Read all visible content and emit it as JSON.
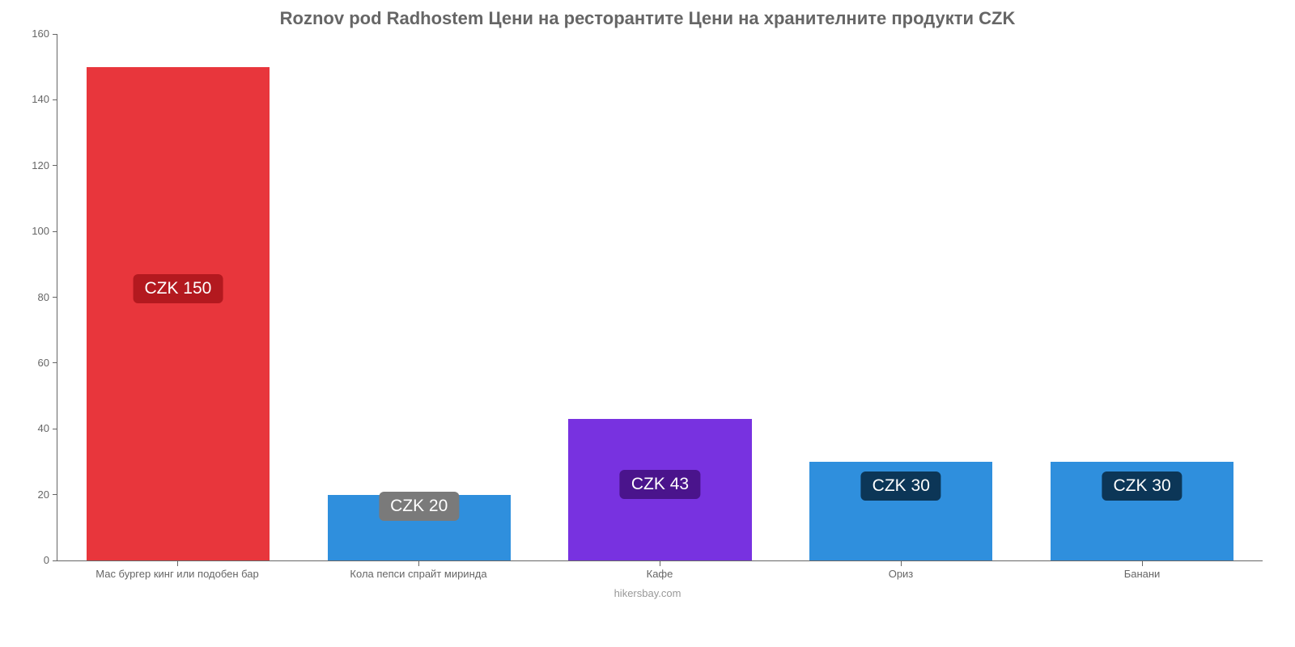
{
  "chart": {
    "type": "bar",
    "title": "Roznov pod Radhostem Цени на ресторантите Цени на хранителните продукти CZK",
    "title_fontsize": 22,
    "title_color": "#666666",
    "attribution": "hikersbay.com",
    "attribution_color": "#999999",
    "background_color": "#ffffff",
    "axis_color": "#666666",
    "ylim": [
      0,
      160
    ],
    "ytick_step": 20,
    "yticks": [
      0,
      20,
      40,
      60,
      80,
      100,
      120,
      140,
      160
    ],
    "tick_fontsize": 13,
    "bar_width_pct": 76,
    "categories": [
      "Мас бургер кинг или подобен бар",
      "Кола пепси спрайт миринда",
      "Кафе",
      "Ориз",
      "Банани"
    ],
    "values": [
      150,
      20,
      43,
      30,
      30
    ],
    "bar_colors": [
      "#e8363c",
      "#2f8fdd",
      "#7832e0",
      "#2f8fdd",
      "#2f8fdd"
    ],
    "value_labels": [
      "CZK 150",
      "CZK 20",
      "CZK 43",
      "CZK 30",
      "CZK 30"
    ],
    "badge_fontsize": 21,
    "badges": [
      {
        "bg": "#b3191f",
        "pos_pct": 42
      },
      {
        "bg": "#7a7a7a",
        "pos_pct": -4
      },
      {
        "bg": "#4a148c",
        "pos_pct": 36
      },
      {
        "bg": "#0c3657",
        "pos_pct": 10
      },
      {
        "bg": "#0c3657",
        "pos_pct": 10
      }
    ]
  }
}
